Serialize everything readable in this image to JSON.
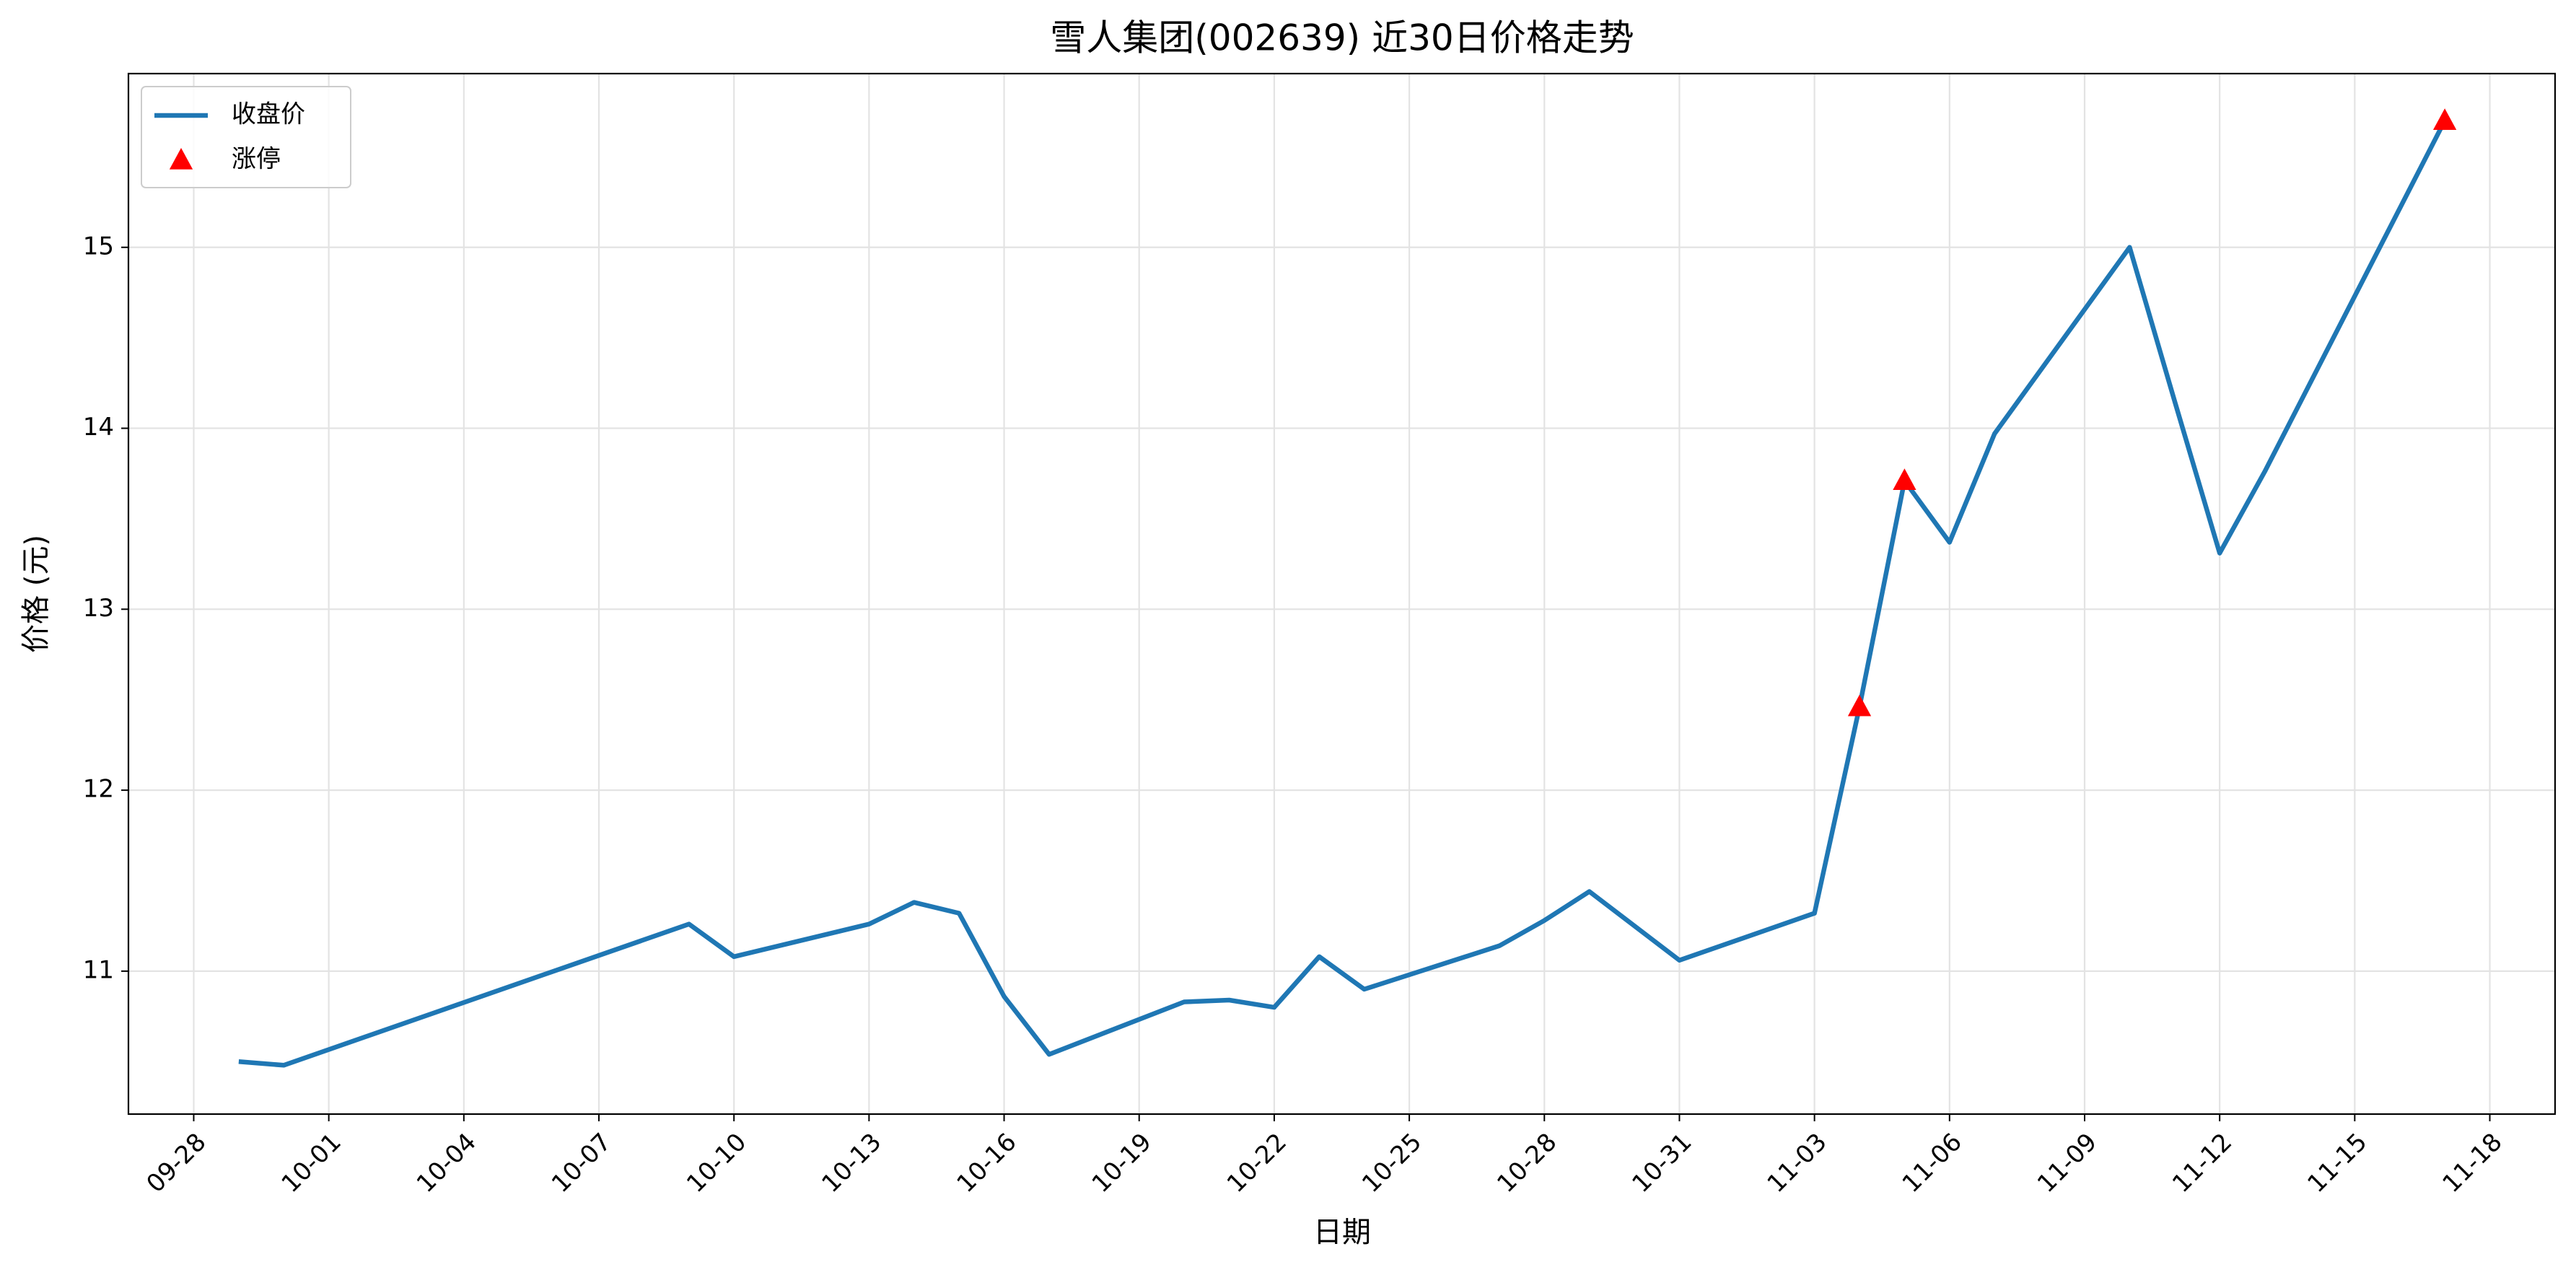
{
  "chart_data": {
    "type": "line",
    "title": "雪人集团(002639) 近30日价格走势",
    "x_label": "日期",
    "y_label": "价格 (元)",
    "series": [
      {
        "name": "收盘价",
        "type": "line",
        "color": "#1f77b4",
        "x": [
          "09-29",
          "09-30",
          "10-09",
          "10-10",
          "10-13",
          "10-14",
          "10-15",
          "10-16",
          "10-17",
          "10-20",
          "10-21",
          "10-22",
          "10-23",
          "10-24",
          "10-27",
          "10-28",
          "10-29",
          "10-31",
          "11-03",
          "11-04",
          "11-05",
          "11-06",
          "11-07",
          "11-10",
          "11-11",
          "11-12",
          "11-13",
          "11-17"
        ],
        "values": [
          10.5,
          10.48,
          11.26,
          11.08,
          11.26,
          11.38,
          11.32,
          10.86,
          10.54,
          10.83,
          10.84,
          10.8,
          11.08,
          10.9,
          11.14,
          11.28,
          11.44,
          11.06,
          11.32,
          12.46,
          13.71,
          13.37,
          13.97,
          15.0,
          14.15,
          13.31,
          13.76,
          15.7
        ]
      },
      {
        "name": "涨停",
        "type": "scatter",
        "marker": "triangle",
        "color": "#ff0000",
        "x": [
          "11-04",
          "11-05",
          "11-17"
        ],
        "values": [
          12.46,
          13.71,
          15.7
        ]
      }
    ],
    "xticks": [
      "09-28",
      "10-01",
      "10-04",
      "10-07",
      "10-10",
      "10-13",
      "10-16",
      "10-19",
      "10-22",
      "10-25",
      "10-28",
      "10-31",
      "11-03",
      "11-06",
      "11-09",
      "11-12",
      "11-15",
      "11-18"
    ],
    "ylim": [
      10.21,
      15.96
    ],
    "yticks": [
      11,
      12,
      13,
      14,
      15
    ],
    "grid": true,
    "legend": "upper left"
  }
}
